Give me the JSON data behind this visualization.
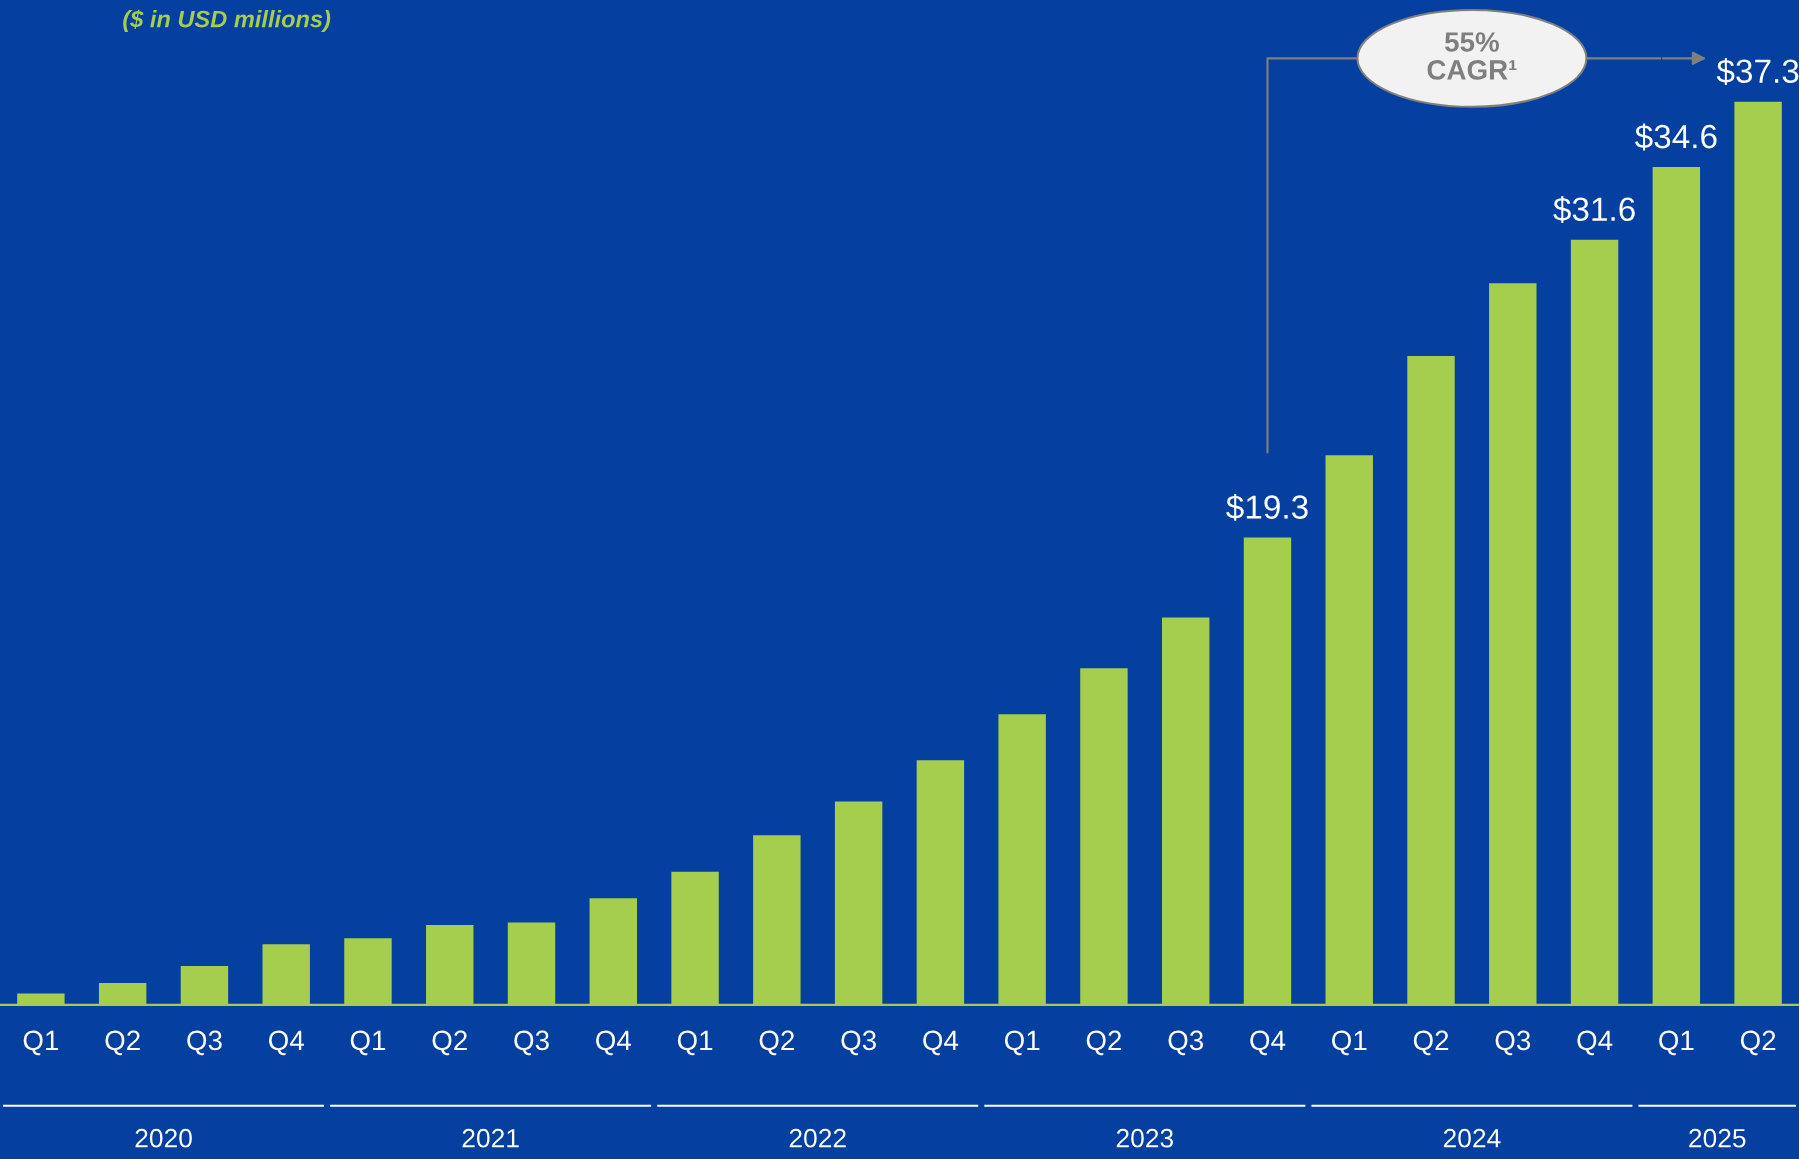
{
  "chart_data": {
    "type": "bar",
    "subtitle": "($ in USD millions)",
    "categories": [
      "Q1",
      "Q2",
      "Q3",
      "Q4",
      "Q1",
      "Q2",
      "Q3",
      "Q4",
      "Q1",
      "Q2",
      "Q3",
      "Q4",
      "Q1",
      "Q2",
      "Q3",
      "Q4",
      "Q1",
      "Q2",
      "Q3",
      "Q4",
      "Q1",
      "Q2"
    ],
    "values": [
      0.47,
      0.9,
      1.6,
      2.5,
      2.75,
      3.3,
      3.4,
      4.4,
      5.5,
      7.0,
      8.4,
      10.1,
      12.0,
      13.9,
      16.0,
      19.3,
      22.7,
      26.8,
      29.8,
      31.6,
      34.6,
      37.3
    ],
    "value_labels": [
      null,
      null,
      null,
      null,
      null,
      null,
      null,
      null,
      null,
      null,
      null,
      null,
      null,
      null,
      null,
      "$19.3",
      null,
      null,
      null,
      "$31.6",
      "$34.6",
      "$37.3"
    ],
    "color": "#a5cd4e",
    "ylim": [
      0,
      41.5
    ],
    "annotations": [
      "55% CAGR¹",
      "2020",
      "2021",
      "2022",
      "2023",
      "2024",
      "2025"
    ],
    "grid": false,
    "legend": false
  }
}
